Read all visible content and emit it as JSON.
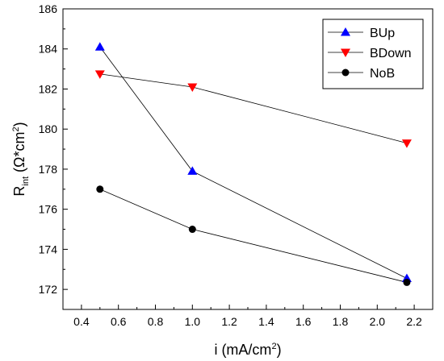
{
  "chart_data": {
    "type": "line",
    "title": "",
    "xlabel": "i (mA/cm²)",
    "ylabel_parts": {
      "main": "R",
      "sub": "int",
      "unit_open": " (Ω*cm",
      "unit_sup": "2",
      "unit_close": ")"
    },
    "xlabel_parts": {
      "main": "i (mA/cm",
      "sup": "2",
      "close": ")"
    },
    "xlim": [
      0.3,
      2.3
    ],
    "ylim": [
      171,
      186
    ],
    "xticks": [
      "0.4",
      "0.6",
      "0.8",
      "1.0",
      "1.2",
      "1.4",
      "1.6",
      "1.8",
      "2.0",
      "2.2"
    ],
    "yticks": [
      "172",
      "174",
      "176",
      "178",
      "180",
      "182",
      "184",
      "186"
    ],
    "legend_position": "top-right",
    "grid": false,
    "series": [
      {
        "name": "BUp",
        "marker": "triangle-up",
        "color": "#0000ff",
        "x": [
          0.5,
          1.0,
          2.16
        ],
        "y": [
          184.1,
          177.9,
          172.55
        ]
      },
      {
        "name": "BDown",
        "marker": "triangle-down",
        "color": "#ff0000",
        "x": [
          0.5,
          1.0,
          2.16
        ],
        "y": [
          182.75,
          182.1,
          179.3
        ]
      },
      {
        "name": "NoB",
        "marker": "circle",
        "color": "#000000",
        "x": [
          0.5,
          1.0,
          2.16
        ],
        "y": [
          177.0,
          175.0,
          172.35
        ]
      }
    ]
  }
}
